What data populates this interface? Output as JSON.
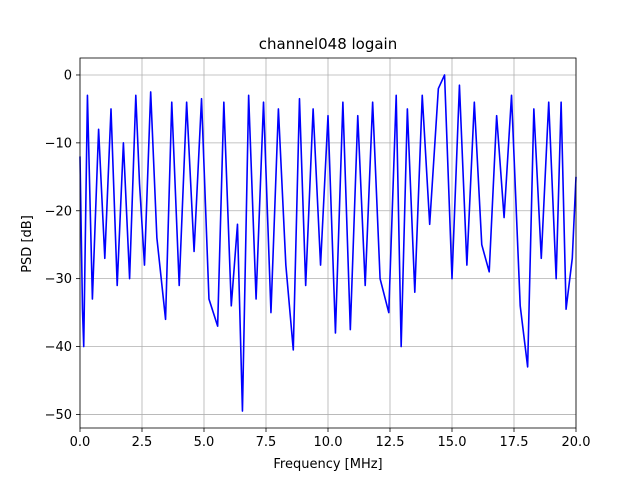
{
  "chart_data": {
    "type": "line",
    "title": "channel048 logain",
    "xlabel": "Frequency [MHz]",
    "ylabel": "PSD [dB]",
    "xlim": [
      0,
      20
    ],
    "ylim": [
      -52,
      2.5
    ],
    "xticks": [
      0,
      2.5,
      5,
      7.5,
      10,
      12.5,
      15,
      17.5,
      20
    ],
    "xtick_labels": [
      "0.0",
      "2.5",
      "5.0",
      "7.5",
      "10.0",
      "12.5",
      "15.0",
      "17.5",
      "20.0"
    ],
    "yticks": [
      0,
      -10,
      -20,
      -30,
      -40,
      -50
    ],
    "ytick_labels": [
      "0",
      "−10",
      "−20",
      "−30",
      "−40",
      "−50"
    ],
    "grid": true,
    "series": [
      {
        "color": "#0000ff",
        "x": [
          0,
          0.1,
          0.15,
          0.3,
          0.5,
          0.75,
          1.0,
          1.25,
          1.5,
          1.75,
          2.0,
          2.25,
          2.4,
          2.6,
          2.85,
          3.1,
          3.45,
          3.7,
          4.0,
          4.3,
          4.6,
          4.9,
          5.2,
          5.55,
          5.8,
          6.1,
          6.35,
          6.55,
          6.8,
          7.1,
          7.4,
          7.7,
          8.0,
          8.3,
          8.6,
          8.85,
          9.1,
          9.4,
          9.7,
          10.0,
          10.3,
          10.6,
          10.9,
          11.2,
          11.5,
          11.8,
          12.1,
          12.45,
          12.75,
          12.95,
          13.2,
          13.5,
          13.8,
          14.1,
          14.45,
          14.7,
          15.0,
          15.3,
          15.6,
          15.9,
          16.2,
          16.5,
          16.8,
          17.1,
          17.4,
          17.75,
          18.05,
          18.3,
          18.6,
          18.9,
          19.2,
          19.4,
          19.6,
          19.85,
          20.0
        ],
        "y": [
          -12,
          -34.5,
          -40,
          -3,
          -33,
          -8,
          -27,
          -5,
          -31,
          -10,
          -30,
          -3,
          -16,
          -28,
          -2.5,
          -24,
          -36,
          -4,
          -31,
          -4,
          -26,
          -3.5,
          -33,
          -37,
          -4,
          -34,
          -22,
          -49.5,
          -3,
          -33,
          -4,
          -35,
          -5,
          -28,
          -40.5,
          -3.5,
          -31,
          -5,
          -28,
          -6,
          -38,
          -4,
          -37.5,
          -6,
          -31,
          -4,
          -30,
          -35,
          -3,
          -40,
          -5,
          -32,
          -3,
          -22,
          -2,
          0,
          -30,
          -1.5,
          -28,
          -4,
          -25,
          -29,
          -6,
          -21,
          -3,
          -34,
          -43,
          -5,
          -27,
          -4,
          -30,
          -4,
          -34.5,
          -27,
          -15
        ]
      }
    ]
  }
}
